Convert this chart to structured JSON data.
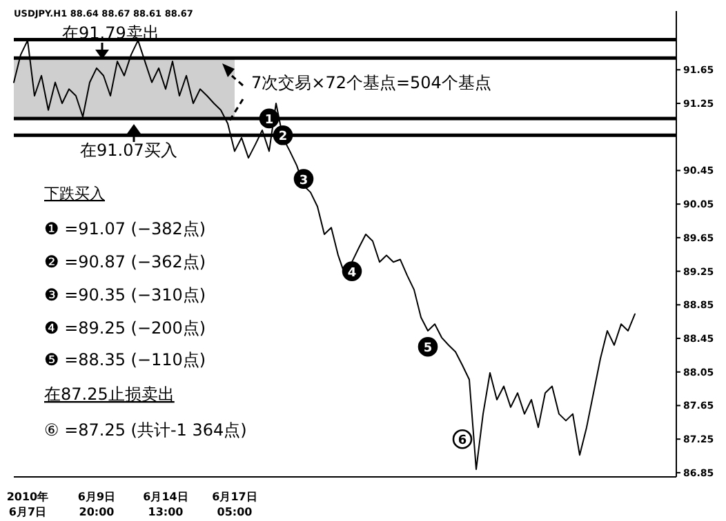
{
  "chart_data": {
    "type": "line",
    "categories": [
      null,
      null,
      "2010年\n6月7日",
      null,
      null,
      null,
      null,
      null,
      null,
      null,
      null,
      null,
      "6月9日\n20:00",
      null,
      null,
      null,
      null,
      null,
      null,
      null,
      null,
      null,
      "6月14日\n13:00",
      null,
      null,
      null,
      null,
      null,
      null,
      null,
      null,
      null,
      "6月17日\n05:00",
      null,
      null,
      null,
      null,
      null,
      null,
      null,
      null,
      null,
      null,
      null,
      null,
      null,
      null,
      null,
      null,
      null,
      null,
      null,
      null,
      null,
      null,
      null,
      null,
      null,
      null,
      null,
      null,
      null,
      null,
      null,
      null,
      null,
      null,
      null,
      null,
      null,
      null,
      null,
      null,
      null,
      null,
      null,
      null,
      null,
      null,
      null,
      null,
      null,
      null,
      null,
      null,
      null,
      null,
      null,
      null,
      null,
      null,
      null,
      null,
      null,
      null,
      null,
      null
    ],
    "series": [
      {
        "color": "#000000",
        "values": [
          91.5,
          91.83,
          92.0,
          91.34,
          91.58,
          91.17,
          91.5,
          91.25,
          91.42,
          91.34,
          91.09,
          91.5,
          91.67,
          91.58,
          91.34,
          91.75,
          91.58,
          91.83,
          92.0,
          91.75,
          91.5,
          91.67,
          91.42,
          91.75,
          91.34,
          91.58,
          91.25,
          91.42,
          91.34,
          91.25,
          91.17,
          91.01,
          90.68,
          90.84,
          90.6,
          90.76,
          90.93,
          90.68,
          91.25,
          90.84,
          90.68,
          90.51,
          90.27,
          90.19,
          90.02,
          89.69,
          89.77,
          89.44,
          89.2,
          89.36,
          89.53,
          89.69,
          89.61,
          89.36,
          89.44,
          89.36,
          89.39,
          89.2,
          89.03,
          88.7,
          88.54,
          88.62,
          88.46,
          88.37,
          88.29,
          88.13,
          87.96,
          86.89,
          87.55,
          88.04,
          87.72,
          87.88,
          87.63,
          87.8,
          87.55,
          87.72,
          87.39,
          87.8,
          87.88,
          87.55,
          87.47,
          87.55,
          87.06,
          87.39,
          87.8,
          88.21,
          88.54,
          88.37,
          88.62,
          88.54,
          88.74,
          null,
          null,
          null,
          null,
          null,
          null
        ]
      },
      {
        "type": "scatter",
        "colors": [
          null,
          null,
          null,
          null,
          null,
          null,
          null,
          null,
          null,
          null,
          null,
          null,
          null,
          null,
          null,
          null,
          null,
          null,
          null,
          null,
          null,
          null,
          null,
          null,
          null,
          null,
          null,
          null,
          null,
          null,
          null,
          null,
          null,
          null,
          null,
          null,
          null,
          "#000000",
          null,
          "#000000",
          null,
          null,
          "#000000",
          null,
          null,
          null,
          null,
          null,
          null,
          "#000000",
          null,
          null,
          null,
          null,
          null,
          null,
          null,
          null,
          null,
          null,
          "#000000",
          null,
          null,
          null,
          null,
          "#ffffff",
          null,
          null,
          null,
          null,
          null,
          null,
          null,
          null,
          null,
          null,
          null,
          null,
          null,
          null,
          null,
          null,
          null,
          null,
          null,
          null,
          null,
          null,
          null,
          null,
          null,
          null,
          null,
          null,
          null,
          null,
          null
        ],
        "values": [
          null,
          null,
          null,
          null,
          null,
          null,
          null,
          null,
          null,
          null,
          null,
          null,
          null,
          null,
          null,
          null,
          null,
          null,
          null,
          null,
          null,
          null,
          null,
          null,
          null,
          null,
          null,
          null,
          null,
          null,
          null,
          null,
          null,
          null,
          null,
          null,
          null,
          91.07,
          null,
          90.87,
          null,
          null,
          90.35,
          null,
          null,
          null,
          null,
          null,
          null,
          89.25,
          null,
          null,
          null,
          null,
          null,
          null,
          null,
          null,
          null,
          null,
          88.35,
          null,
          null,
          null,
          null,
          87.25,
          null,
          null,
          null,
          null,
          null,
          null,
          null,
          null,
          null,
          null,
          null,
          null,
          null,
          null,
          null,
          null,
          null,
          null,
          null,
          null,
          null,
          null,
          null,
          null,
          null,
          null,
          null,
          null,
          null,
          null,
          null
        ]
      }
    ],
    "ylim": [
      86.8,
      92.35
    ],
    "yticks": [
      86.85,
      87.25,
      87.65,
      88.05,
      88.45,
      88.85,
      89.25,
      89.65,
      90.05,
      90.45,
      91.25,
      91.65
    ],
    "ref_lines": [
      {
        "axis": "y",
        "value": 92.01,
        "color": "#000000"
      },
      {
        "axis": "y",
        "value": 91.79,
        "color": "#000000"
      },
      {
        "axis": "y",
        "value": 91.07,
        "color": "#000000"
      },
      {
        "axis": "y",
        "value": 90.87,
        "color": "#000000"
      }
    ],
    "bands": [
      {
        "axis": "y",
        "from": 91.07,
        "to": 91.79,
        "color": "#cfcfcf"
      }
    ],
    "annotations": [
      "USDJPY.H1 88.64 88.67 88.61 88.67",
      "在91.79卖出",
      "在91.07买入",
      "7次交易×72个基点=504个基点",
      "下跌买入",
      "❶ =91.07 (−382点)",
      "❷ =90.87 (−362点)",
      "❸ =90.35 (−310点)",
      "❹ =89.25 (−200点)",
      "❺ =88.35 (−110点)",
      "在87.25止损卖出",
      "⑥ =87.25 (共计-1 364点)",
      {
        "text": "1",
        "y": 91.07
      },
      {
        "text": "2",
        "y": 90.87
      },
      {
        "text": "3",
        "y": 90.35
      },
      {
        "text": "4",
        "y": 89.25
      },
      {
        "text": "5",
        "y": 88.35
      },
      {
        "text": "6",
        "y": 87.25
      }
    ]
  }
}
